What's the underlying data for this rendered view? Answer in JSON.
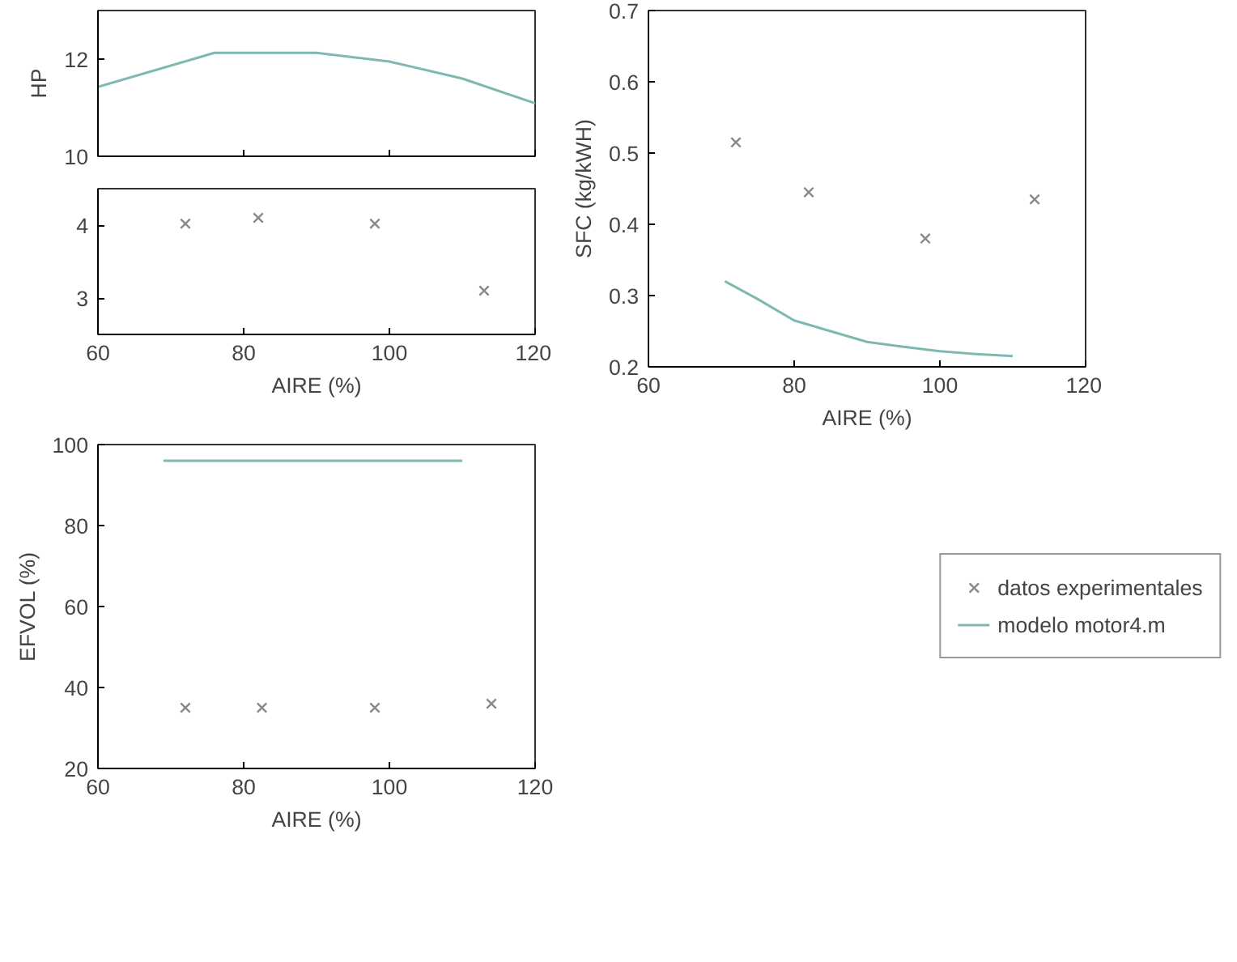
{
  "chart_data": [
    {
      "type": "line",
      "ylabel": "HP",
      "xlim": [
        60,
        120
      ],
      "ylim": [
        10,
        13
      ],
      "xticks": [
        60,
        80,
        100,
        120
      ],
      "yticks": [
        10,
        12
      ],
      "tick_labels": "y",
      "grid": false,
      "legend": false,
      "line_style": "solid",
      "series": [
        {
          "color": "#7fb8b0",
          "x": [
            60,
            76,
            90,
            100,
            110,
            120
          ],
          "values": [
            11.43,
            12.13,
            12.13,
            11.95,
            11.6,
            11.09
          ]
        }
      ]
    },
    {
      "type": "scatter",
      "xlabel": "AIRE (%)",
      "xlim": [
        60,
        120
      ],
      "ylim": [
        2.5,
        4.5
      ],
      "xticks": [
        60,
        80,
        100,
        120
      ],
      "yticks": [
        3,
        4
      ],
      "grid": false,
      "legend": false,
      "marker": "cross",
      "series": [
        {
          "color": "#888888",
          "x": [
            72,
            82,
            98,
            113
          ],
          "values": [
            4.02,
            4.1,
            4.02,
            3.1
          ]
        }
      ]
    },
    {
      "type": "scatter",
      "xlabel": "AIRE (%)",
      "ylabel": "SFC (kg/kWH)",
      "xlim": [
        60,
        120
      ],
      "ylim": [
        0.2,
        0.7
      ],
      "xticks": [
        60,
        80,
        100,
        120
      ],
      "yticks": [
        0.2,
        0.3,
        0.4,
        0.5,
        0.6,
        0.7
      ],
      "grid": false,
      "legend": false,
      "line_style": "solid",
      "series": [
        {
          "color": "#888888",
          "marker": "cross",
          "x": [
            72,
            82,
            98,
            113
          ],
          "values": [
            0.515,
            0.445,
            0.38,
            0.435
          ]
        },
        {
          "type": "line",
          "marker": "none",
          "color": "#7fb8b0",
          "x": [
            70.5,
            75,
            80,
            85,
            90,
            95,
            100,
            105,
            110
          ],
          "values": [
            0.32,
            0.295,
            0.265,
            0.25,
            0.235,
            0.228,
            0.222,
            0.218,
            0.215
          ]
        }
      ]
    },
    {
      "type": "scatter",
      "xlabel": "AIRE (%)",
      "ylabel": "EFVOL (%)",
      "xlim": [
        60,
        120
      ],
      "ylim": [
        20,
        100
      ],
      "xticks": [
        60,
        80,
        100,
        120
      ],
      "yticks": [
        20,
        40,
        60,
        80,
        100
      ],
      "grid": false,
      "legend": "right",
      "line_style": "solid",
      "series": [
        {
          "name": "datos experimentales",
          "marker": "cross",
          "color": "#888888",
          "x": [
            72,
            82.5,
            98,
            114
          ],
          "values": [
            35,
            35,
            35,
            36
          ]
        },
        {
          "type": "line",
          "marker": "none",
          "name": "modelo motor4.m",
          "color": "#7fb8b0",
          "x": [
            69,
            110
          ],
          "values": [
            96,
            96
          ]
        }
      ]
    }
  ]
}
